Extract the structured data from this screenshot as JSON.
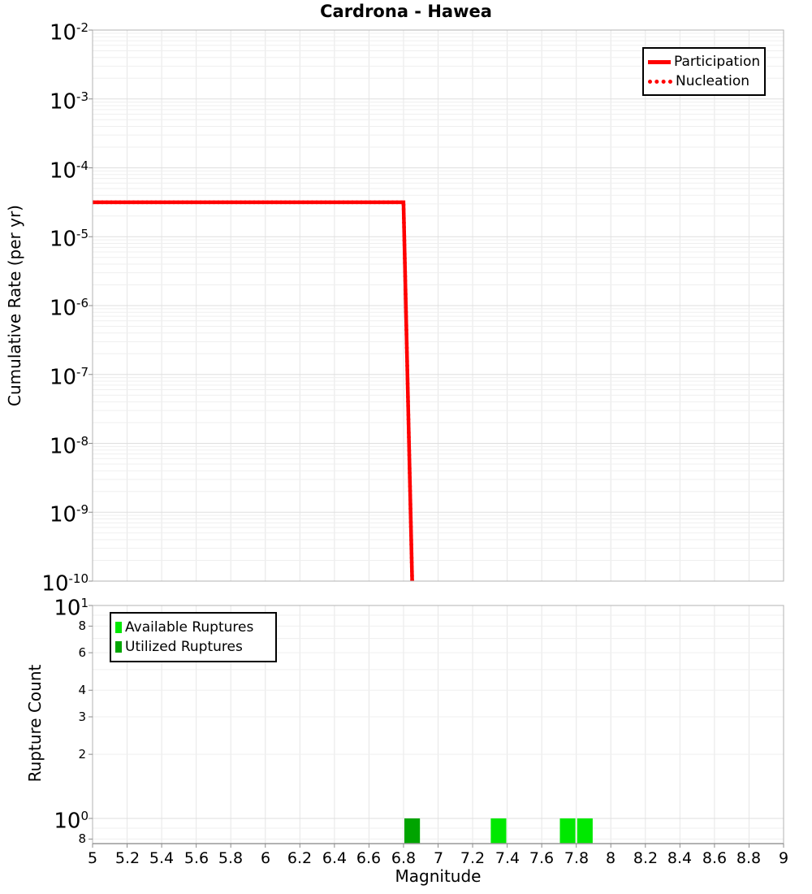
{
  "title": "Cardrona - Hawea",
  "axes": {
    "top_ylabel": "Cumulative Rate (per yr)",
    "bottom_ylabel": "Rupture Count",
    "xlabel": "Magnitude"
  },
  "chart_data": [
    {
      "type": "line",
      "panel": "top",
      "title": "Cardrona - Hawea",
      "xlabel": "",
      "ylabel": "Cumulative Rate (per yr)",
      "x_range": [
        5,
        9
      ],
      "y_range": [
        1e-10,
        0.01
      ],
      "y_scale": "log",
      "x_scale": "linear",
      "grid": true,
      "x_grid_step": 0.2,
      "y_tick_exponents": [
        -2,
        -3,
        -4,
        -5,
        -6,
        -7,
        -8,
        -9,
        -10
      ],
      "legend_position": "top-right",
      "series": [
        {
          "name": "Participation",
          "color": "#ff0000",
          "line_style": "solid",
          "line_width": 4.5,
          "points": [
            [
              5.0,
              3.16e-05
            ],
            [
              6.8,
              3.16e-05
            ],
            [
              6.85,
              1e-10
            ]
          ]
        },
        {
          "name": "Nucleation",
          "color": "#ff0000",
          "line_style": "dotted",
          "line_width": 4.5,
          "points": [
            [
              5.0,
              3.16e-05
            ],
            [
              6.8,
              3.16e-05
            ],
            [
              6.85,
              1e-10
            ]
          ]
        }
      ]
    },
    {
      "type": "bar",
      "panel": "bottom",
      "xlabel": "Magnitude",
      "ylabel": "Rupture Count",
      "x_range": [
        5,
        9
      ],
      "y_range": [
        0.76,
        10
      ],
      "y_scale": "log",
      "x_scale": "linear",
      "grid": true,
      "x_grid_step": 0.2,
      "x_ticks": [
        5,
        5.2,
        5.4,
        5.6,
        5.8,
        6,
        6.2,
        6.4,
        6.6,
        6.8,
        7,
        7.2,
        7.4,
        7.6,
        7.8,
        8,
        8.2,
        8.4,
        8.6,
        8.8,
        9
      ],
      "y_ticks": [
        {
          "value": 10,
          "exponent": 1
        },
        {
          "value": 8,
          "label": "8"
        },
        {
          "value": 6,
          "label": "6"
        },
        {
          "value": 4,
          "label": "4"
        },
        {
          "value": 3,
          "label": "3"
        },
        {
          "value": 2,
          "label": "2"
        },
        {
          "value": 1,
          "exponent": 0
        },
        {
          "value": 0.8,
          "label": "8"
        }
      ],
      "bin_width": 0.1,
      "legend_position": "top-left",
      "series": [
        {
          "name": "Available Ruptures",
          "color": "#00e800",
          "bins": [
            {
              "magnitude": 6.85,
              "count": 1
            },
            {
              "magnitude": 7.35,
              "count": 1
            },
            {
              "magnitude": 7.75,
              "count": 1
            },
            {
              "magnitude": 7.85,
              "count": 1
            }
          ]
        },
        {
          "name": "Utilized Ruptures",
          "color": "#00a400",
          "bins": [
            {
              "magnitude": 6.85,
              "count": 1
            }
          ]
        }
      ]
    }
  ]
}
